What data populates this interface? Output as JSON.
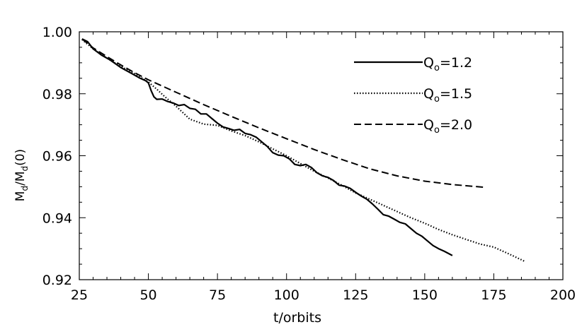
{
  "chart_data": {
    "type": "line",
    "title": "",
    "xlabel": "t/orbits",
    "ylabel": {
      "base": "M",
      "sub": "d",
      "mid": "/M",
      "sub2": "d",
      "tail": "(0)"
    },
    "xlim": [
      25,
      200
    ],
    "ylim": [
      0.92,
      1.0
    ],
    "xticks": [
      25,
      50,
      75,
      100,
      125,
      150,
      175,
      200
    ],
    "xtick_labels": [
      "25",
      "50",
      "75",
      "100",
      "125",
      "150",
      "175",
      "200"
    ],
    "yticks": [
      0.92,
      0.94,
      0.96,
      0.98,
      1.0
    ],
    "ytick_labels": [
      "0.92",
      "0.94",
      "0.96",
      "0.98",
      "1.00"
    ],
    "grid": false,
    "legend_position": "top-right",
    "series": [
      {
        "name": "Q",
        "name_sub": "o",
        "name_value": "=1.2",
        "style": "solid",
        "points": [
          [
            26,
            0.9977
          ],
          [
            28,
            0.9968
          ],
          [
            30,
            0.9945
          ],
          [
            33,
            0.9925
          ],
          [
            36,
            0.991
          ],
          [
            40,
            0.9885
          ],
          [
            44,
            0.9865
          ],
          [
            47,
            0.985
          ],
          [
            49,
            0.9842
          ],
          [
            50,
            0.9835
          ],
          [
            51,
            0.981
          ],
          [
            52,
            0.979
          ],
          [
            53,
            0.9782
          ],
          [
            55,
            0.9783
          ],
          [
            57,
            0.9775
          ],
          [
            59,
            0.977
          ],
          [
            61,
            0.9762
          ],
          [
            63,
            0.9765
          ],
          [
            65,
            0.9753
          ],
          [
            67,
            0.975
          ],
          [
            69,
            0.9735
          ],
          [
            71,
            0.9735
          ],
          [
            73,
            0.972
          ],
          [
            75,
            0.9705
          ],
          [
            77,
            0.9693
          ],
          [
            79,
            0.9688
          ],
          [
            81,
            0.9682
          ],
          [
            83,
            0.9685
          ],
          [
            85,
            0.9672
          ],
          [
            87,
            0.9668
          ],
          [
            89,
            0.966
          ],
          [
            91,
            0.9645
          ],
          [
            93,
            0.963
          ],
          [
            95,
            0.961
          ],
          [
            97,
            0.9602
          ],
          [
            99,
            0.96
          ],
          [
            101,
            0.959
          ],
          [
            103,
            0.9572
          ],
          [
            105,
            0.9568
          ],
          [
            107,
            0.9572
          ],
          [
            109,
            0.9562
          ],
          [
            111,
            0.9545
          ],
          [
            113,
            0.9535
          ],
          [
            115,
            0.953
          ],
          [
            117,
            0.952
          ],
          [
            119,
            0.9505
          ],
          [
            121,
            0.9502
          ],
          [
            123,
            0.9495
          ],
          [
            125,
            0.9482
          ],
          [
            127,
            0.947
          ],
          [
            129,
            0.946
          ],
          [
            131,
            0.9445
          ],
          [
            133,
            0.9428
          ],
          [
            135,
            0.941
          ],
          [
            137,
            0.9405
          ],
          [
            139,
            0.9395
          ],
          [
            141,
            0.9385
          ],
          [
            143,
            0.938
          ],
          [
            145,
            0.9365
          ],
          [
            147,
            0.935
          ],
          [
            149,
            0.934
          ],
          [
            151,
            0.9325
          ],
          [
            153,
            0.931
          ],
          [
            155,
            0.93
          ],
          [
            157,
            0.9292
          ],
          [
            160,
            0.9278
          ]
        ]
      },
      {
        "name": "Q",
        "name_sub": "o",
        "name_value": "=1.5",
        "style": "dotted",
        "points": [
          [
            26,
            0.9975
          ],
          [
            30,
            0.9945
          ],
          [
            35,
            0.9915
          ],
          [
            40,
            0.9888
          ],
          [
            45,
            0.9865
          ],
          [
            50,
            0.9838
          ],
          [
            53,
            0.9815
          ],
          [
            56,
            0.979
          ],
          [
            60,
            0.976
          ],
          [
            65,
            0.9718
          ],
          [
            70,
            0.9702
          ],
          [
            75,
            0.9698
          ],
          [
            80,
            0.968
          ],
          [
            85,
            0.9665
          ],
          [
            90,
            0.9645
          ],
          [
            95,
            0.9622
          ],
          [
            100,
            0.96
          ],
          [
            105,
            0.9575
          ],
          [
            110,
            0.955
          ],
          [
            115,
            0.9528
          ],
          [
            120,
            0.9505
          ],
          [
            125,
            0.948
          ],
          [
            130,
            0.946
          ],
          [
            135,
            0.944
          ],
          [
            140,
            0.942
          ],
          [
            145,
            0.94
          ],
          [
            150,
            0.9382
          ],
          [
            155,
            0.9362
          ],
          [
            160,
            0.9345
          ],
          [
            165,
            0.933
          ],
          [
            170,
            0.9315
          ],
          [
            175,
            0.9305
          ],
          [
            180,
            0.9285
          ],
          [
            186,
            0.926
          ]
        ]
      },
      {
        "name": "Q",
        "name_sub": "o",
        "name_value": "=2.0",
        "style": "dashed",
        "points": [
          [
            26,
            0.9977
          ],
          [
            30,
            0.9948
          ],
          [
            35,
            0.992
          ],
          [
            40,
            0.9893
          ],
          [
            45,
            0.9868
          ],
          [
            50,
            0.9845
          ],
          [
            60,
            0.9805
          ],
          [
            70,
            0.9765
          ],
          [
            80,
            0.9727
          ],
          [
            90,
            0.969
          ],
          [
            100,
            0.9655
          ],
          [
            110,
            0.962
          ],
          [
            120,
            0.9588
          ],
          [
            130,
            0.9558
          ],
          [
            140,
            0.9535
          ],
          [
            150,
            0.9518
          ],
          [
            160,
            0.9507
          ],
          [
            172,
            0.9498
          ]
        ]
      }
    ]
  }
}
